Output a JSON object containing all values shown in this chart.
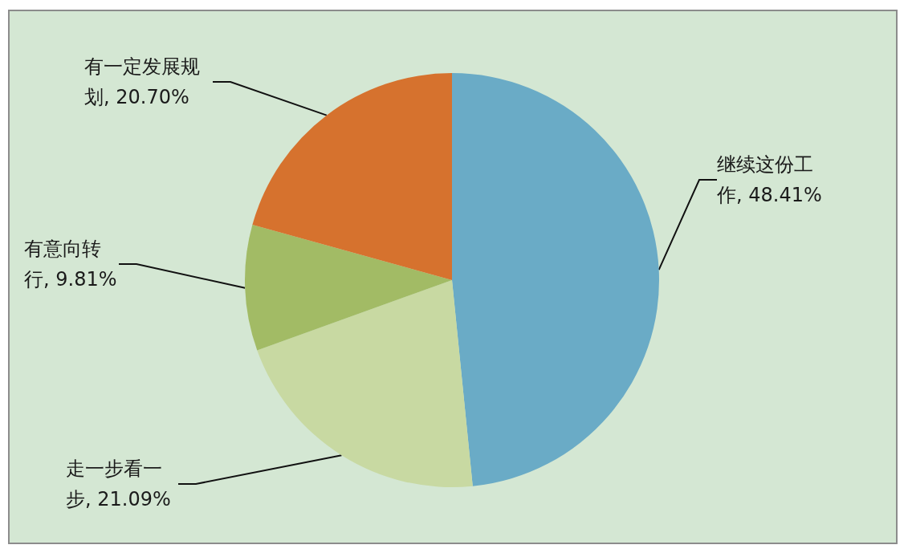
{
  "chart_data": {
    "type": "pie",
    "categories": [
      "继续这份工作",
      "走一步看一步",
      "有意向转行",
      "有一定发展规划"
    ],
    "values": [
      48.41,
      21.09,
      9.81,
      20.7
    ],
    "value_labels": [
      "48.41%",
      "21.09%",
      "9.81%",
      "20.70%"
    ],
    "colors": [
      "#6aabc6",
      "#c8d9a2",
      "#a2bb65",
      "#d6722e"
    ]
  }
}
